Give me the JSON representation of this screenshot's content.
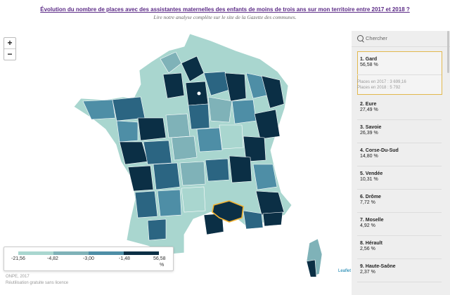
{
  "header": {
    "title": "Évolution du nombre de places avec des assistantes maternelles des enfants de moins de trois ans sur mon territoire entre 2017 et 2018 ?",
    "subtitle": "Lire notre analyse complète sur le site de la Gazette des communes."
  },
  "zoom": {
    "in_label": "+",
    "out_label": "−"
  },
  "colors": {
    "class1": "#a9d6cf",
    "class2": "#7fb2b8",
    "class3": "#4e8ea6",
    "class4": "#2b6582",
    "class5": "#0b2f45",
    "highlight": "#f2b230",
    "panel_bg": "#eeeeee",
    "title": "#5b2a86"
  },
  "legend": {
    "ticks": [
      "-21,56",
      "-4,82",
      "-3,00",
      "-1,48",
      "56,58"
    ],
    "unit": "%"
  },
  "attribution": "Leaflet",
  "source": {
    "line1": "ONPE, 2017",
    "line2": "Réutilisation gratuite sans licence"
  },
  "panel": {
    "search_placeholder": "Chercher",
    "selected": {
      "rank_name": "1. Gard",
      "value": "56,58 %",
      "detail_2017": "Places en 2017 : 3 699,16",
      "detail_2018": "Places en 2018 : 5 792"
    },
    "items": [
      {
        "name": "2. Eure",
        "value": "27,49 %"
      },
      {
        "name": "3. Savoie",
        "value": "26,39 %"
      },
      {
        "name": "4. Corse-Du-Sud",
        "value": "14,80 %"
      },
      {
        "name": "5. Vendée",
        "value": "10,31 %"
      },
      {
        "name": "6. Drôme",
        "value": "7,72 %"
      },
      {
        "name": "7. Moselle",
        "value": "4,92 %"
      },
      {
        "name": "8. Hérault",
        "value": "2,56 %"
      },
      {
        "name": "9. Haute-Saône",
        "value": "2,37 %"
      }
    ]
  }
}
